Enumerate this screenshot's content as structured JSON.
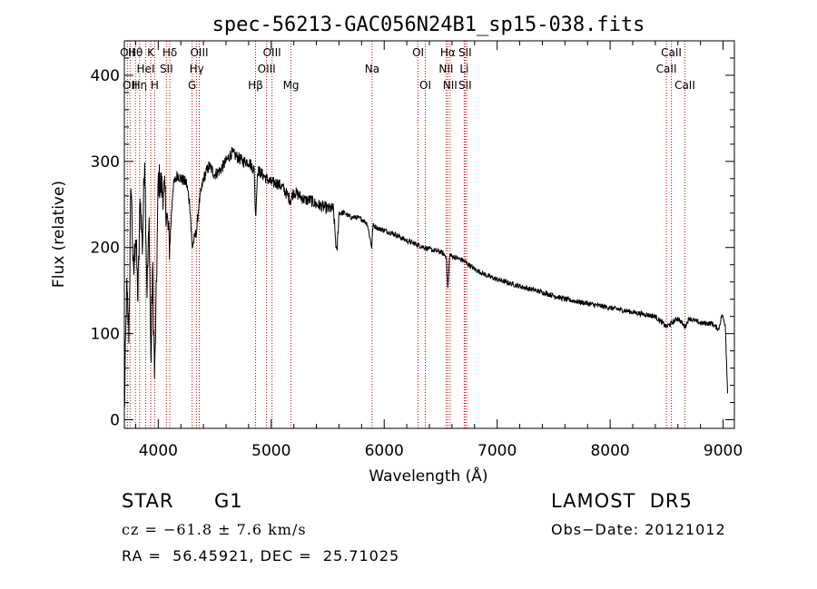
{
  "chart_data": {
    "type": "line",
    "title": "spec-56213-GAC056N24B1_sp15-038.fits",
    "xlabel": "Wavelength (Å)",
    "ylabel": "Flux (relative)",
    "xlim": [
      3700,
      9100
    ],
    "ylim": [
      -10,
      440
    ],
    "xticks": [
      4000,
      5000,
      6000,
      7000,
      8000,
      9000
    ],
    "yticks": [
      0,
      100,
      200,
      300,
      400
    ],
    "grid": false,
    "line_color": "#000000",
    "marker_color": "#cc0000",
    "series": [
      {
        "x": [
          3700,
          3720,
          3740,
          3760,
          3780,
          3800,
          3820,
          3840,
          3860,
          3880,
          3900,
          3920,
          3935,
          3950,
          3968,
          3985,
          4000,
          4030,
          4060,
          4101,
          4130,
          4170,
          4200,
          4250,
          4280,
          4300,
          4340,
          4360,
          4400,
          4450,
          4500,
          4550,
          4600,
          4650,
          4700,
          4750,
          4800,
          4850,
          4861,
          4880,
          4920,
          4960,
          5000,
          5050,
          5100,
          5170,
          5200,
          5250,
          5300,
          5350,
          5400,
          5450,
          5500,
          5550,
          5580,
          5600,
          5650,
          5700,
          5750,
          5800,
          5850,
          5890,
          5900,
          5950,
          6000,
          6100,
          6200,
          6300,
          6400,
          6500,
          6550,
          6563,
          6580,
          6600,
          6700,
          6800,
          6900,
          7000,
          7200,
          7400,
          7600,
          7800,
          8000,
          8200,
          8400,
          8498,
          8542,
          8600,
          8662,
          8700,
          8800,
          8900,
          8960,
          8990,
          9020,
          9040
        ],
        "y": [
          5,
          150,
          100,
          280,
          160,
          220,
          140,
          260,
          200,
          310,
          150,
          230,
          60,
          180,
          45,
          160,
          280,
          270,
          260,
          200,
          270,
          285,
          280,
          275,
          250,
          200,
          220,
          250,
          280,
          295,
          285,
          290,
          300,
          310,
          305,
          300,
          300,
          290,
          235,
          290,
          285,
          280,
          275,
          275,
          270,
          255,
          265,
          260,
          255,
          255,
          250,
          248,
          245,
          245,
          190,
          240,
          240,
          235,
          235,
          233,
          228,
          200,
          226,
          222,
          220,
          215,
          208,
          203,
          198,
          195,
          190,
          150,
          192,
          190,
          185,
          175,
          168,
          163,
          155,
          148,
          140,
          135,
          130,
          125,
          120,
          108,
          112,
          118,
          108,
          118,
          112,
          112,
          105,
          122,
          110,
          30
        ]
      }
    ],
    "lines": [
      {
        "w": 3727,
        "labels": [
          "OII"
        ]
      },
      {
        "w": 3750,
        "labels": [
          "",
          "",
          "OII"
        ]
      },
      {
        "w": 3798,
        "labels": [
          "Hθ",
          "",
          ""
        ]
      },
      {
        "w": 3835,
        "labels": [
          "",
          "",
          "Hη"
        ]
      },
      {
        "w": 3889,
        "labels": [
          "",
          "HeI",
          ""
        ]
      },
      {
        "w": 3934,
        "labels": [
          "K",
          "",
          ""
        ]
      },
      {
        "w": 3968,
        "labels": [
          "",
          "",
          "H"
        ]
      },
      {
        "w": 4072,
        "labels": [
          "",
          "SII",
          ""
        ]
      },
      {
        "w": 4102,
        "labels": [
          "Hδ",
          "",
          ""
        ]
      },
      {
        "w": 4300,
        "labels": [
          "",
          "",
          "G"
        ]
      },
      {
        "w": 4340,
        "labels": [
          "",
          "Hγ",
          ""
        ]
      },
      {
        "w": 4363,
        "labels": [
          "OIII",
          "",
          ""
        ]
      },
      {
        "w": 4861,
        "labels": [
          "",
          "",
          "Hβ"
        ]
      },
      {
        "w": 4959,
        "labels": [
          "",
          "OIII",
          ""
        ]
      },
      {
        "w": 5007,
        "labels": [
          "OIII",
          "",
          ""
        ]
      },
      {
        "w": 5175,
        "labels": [
          "",
          "",
          "Mg"
        ]
      },
      {
        "w": 5893,
        "labels": [
          "",
          "Na",
          ""
        ]
      },
      {
        "w": 6300,
        "labels": [
          "OI",
          "",
          ""
        ]
      },
      {
        "w": 6364,
        "labels": [
          "",
          "",
          "OI"
        ]
      },
      {
        "w": 6548,
        "labels": [
          "",
          "NII",
          ""
        ]
      },
      {
        "w": 6563,
        "labels": [
          "Hα",
          "",
          ""
        ]
      },
      {
        "w": 6583,
        "labels": [
          "",
          "",
          "NII"
        ]
      },
      {
        "w": 6708,
        "labels": [
          "",
          "Li",
          ""
        ]
      },
      {
        "w": 6716,
        "labels": [
          "SII",
          "",
          "SII"
        ]
      },
      {
        "w": 6731,
        "labels": [
          "",
          "",
          ""
        ]
      },
      {
        "w": 8498,
        "labels": [
          "",
          "CaII",
          ""
        ]
      },
      {
        "w": 8542,
        "labels": [
          "CaII",
          "",
          ""
        ]
      },
      {
        "w": 8662,
        "labels": [
          "",
          "",
          "CaII"
        ]
      }
    ]
  },
  "info": {
    "class": "STAR",
    "subclass": "G1",
    "survey": "LAMOST  DR5",
    "cz": "cz = −61.8 ± 7.6 km/s",
    "obs_date": "Obs−Date: 20121012",
    "coords": "RA =  56.45921, DEC =  25.71025"
  }
}
